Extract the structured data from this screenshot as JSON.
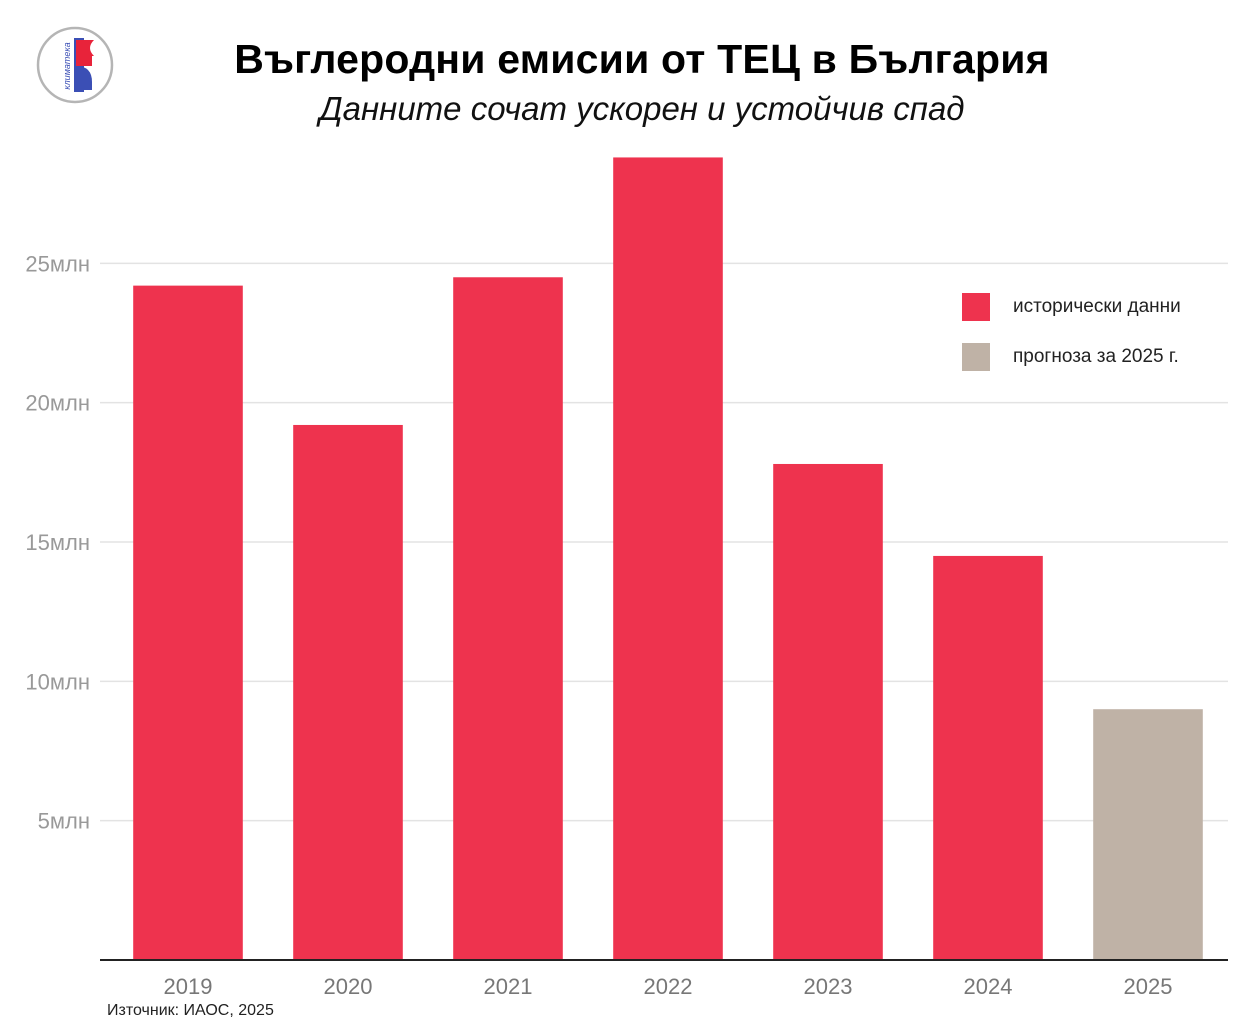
{
  "title": "Въглеродни емисии от ТЕЦ в България",
  "subtitle": "Данните сочат ускорен и устойчив спад",
  "logo_text": "климатека",
  "source": "Източник: ИАОС, 2025",
  "colors": {
    "historical": "#ee334e",
    "forecast": "#bfb2a6",
    "grid": "#e3e3e3",
    "tick": "#999999"
  },
  "legend": [
    {
      "label": "исторически данни",
      "color": "#ee334e"
    },
    {
      "label": "прогноза за 2025 г.",
      "color": "#bfb2a6"
    }
  ],
  "chart_data": {
    "type": "bar",
    "categories": [
      "2019",
      "2020",
      "2021",
      "2022",
      "2023",
      "2024",
      "2025"
    ],
    "values": [
      24.2,
      19.2,
      24.5,
      28.8,
      17.8,
      14.5,
      9.0
    ],
    "value_unit": "млн",
    "series_kind": [
      "historical",
      "historical",
      "historical",
      "historical",
      "historical",
      "historical",
      "forecast"
    ],
    "yticks": [
      5,
      10,
      15,
      20,
      25
    ],
    "ytick_labels": [
      "5млн",
      "10млн",
      "15млн",
      "20млн",
      "25млн"
    ],
    "ylim": [
      0,
      30
    ],
    "grid": true,
    "legend_position": "top-right",
    "title": "Въглеродни емисии от ТЕЦ в България",
    "xlabel": "",
    "ylabel": ""
  }
}
